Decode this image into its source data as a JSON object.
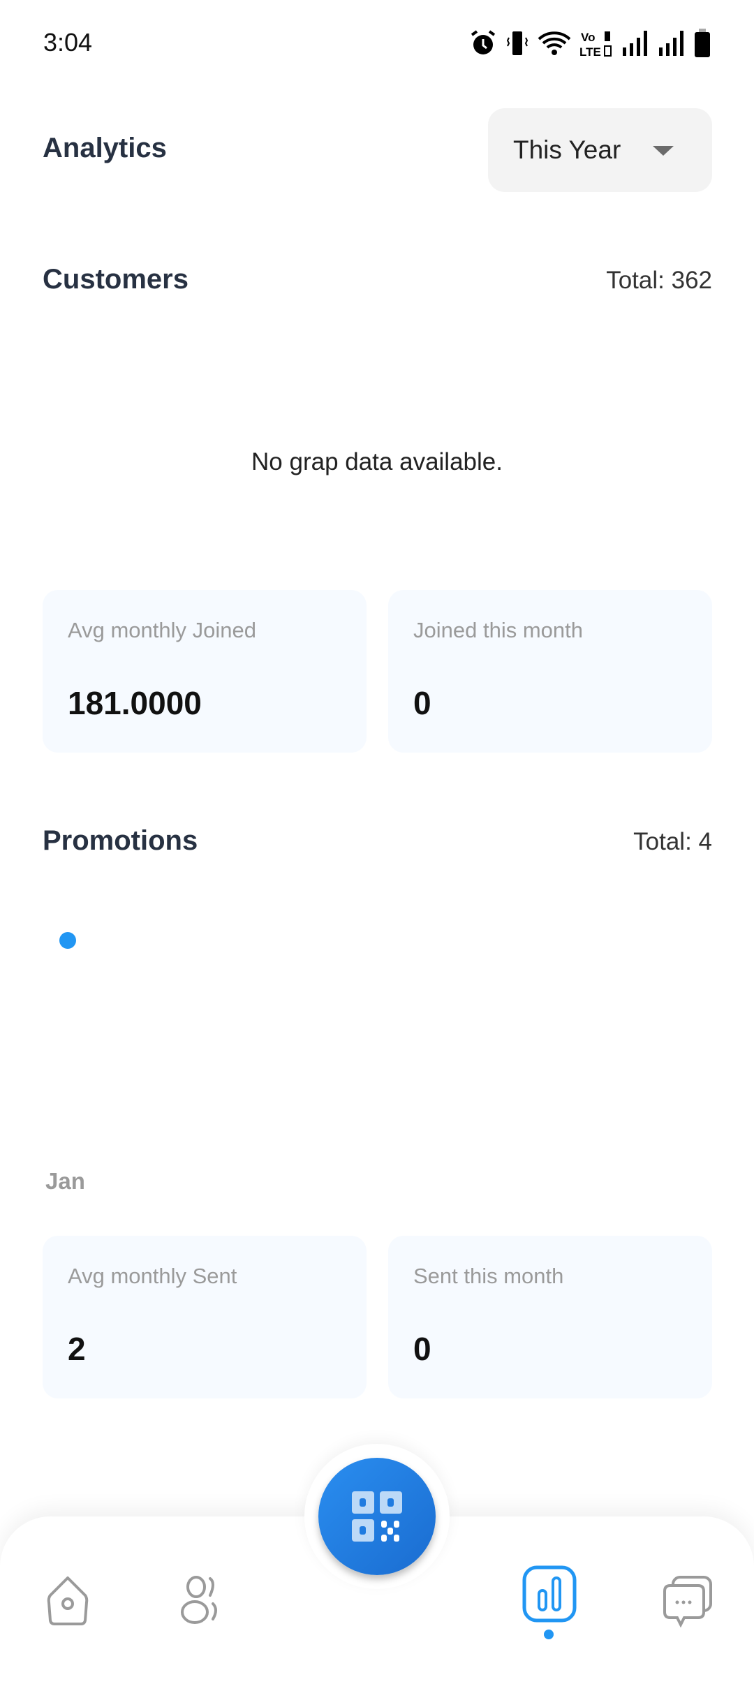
{
  "status_bar": {
    "time": "3:04",
    "icons": [
      "alarm-icon",
      "vibrate-icon",
      "wifi-icon",
      "volte-icon",
      "signal-icon",
      "signal-icon",
      "battery-icon"
    ]
  },
  "header": {
    "title": "Analytics",
    "period_select": {
      "selected": "This Year"
    }
  },
  "customers": {
    "title": "Customers",
    "total": "Total: 362",
    "empty_message": "No grap data available.",
    "cards": [
      {
        "label": "Avg monthly Joined",
        "value": "181.0000"
      },
      {
        "label": "Joined this month",
        "value": "0"
      }
    ]
  },
  "promotions": {
    "title": "Promotions",
    "total": "Total: 4",
    "chart_x_label": "Jan",
    "cards": [
      {
        "label": "Avg monthly Sent",
        "value": "2"
      },
      {
        "label": "Sent this month",
        "value": "0"
      }
    ]
  },
  "chart_data": {
    "type": "line",
    "categories": [
      "Jan"
    ],
    "values": [
      4
    ]
  },
  "nav": {
    "items": [
      "home-icon",
      "customers-icon",
      "analytics-icon",
      "messages-icon"
    ],
    "active": "analytics",
    "fab": "qr-code-icon",
    "accent": "#2196f3"
  }
}
